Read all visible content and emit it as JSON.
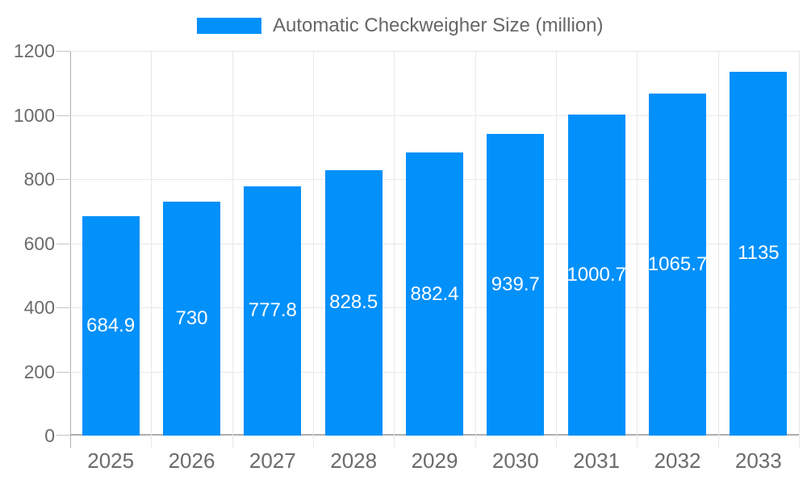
{
  "legend": {
    "label": "Automatic Checkweigher Size (million)"
  },
  "colors": {
    "bar": "#0290fa",
    "grid_line": "#e8e8e8",
    "axis_line": "#aeaeae",
    "tick_line": "#c6c6c6",
    "axis_text": "#6b6b6b",
    "legend_text": "#666666",
    "value_text": "#ffffff"
  },
  "chart_data": {
    "type": "bar",
    "title": "",
    "categories": [
      "2025",
      "2026",
      "2027",
      "2028",
      "2029",
      "2030",
      "2031",
      "2032",
      "2033"
    ],
    "series": [
      {
        "name": "Automatic Checkweigher Size (million)",
        "values": [
          684.9,
          730,
          777.8,
          828.5,
          882.4,
          939.7,
          1000.7,
          1065.7,
          1135
        ]
      }
    ],
    "value_labels": [
      "684.9",
      "730",
      "777.8",
      "828.5",
      "882.4",
      "939.7",
      "1000.7",
      "1065.7",
      "1135"
    ],
    "xlabel": "",
    "ylabel": "",
    "ylim": [
      0,
      1200
    ],
    "yticks": [
      0,
      200,
      400,
      600,
      800,
      1000,
      1200
    ],
    "grid": true,
    "legend_position": "top",
    "data_labels": "inside-center",
    "bar_color": "#0290fa"
  }
}
